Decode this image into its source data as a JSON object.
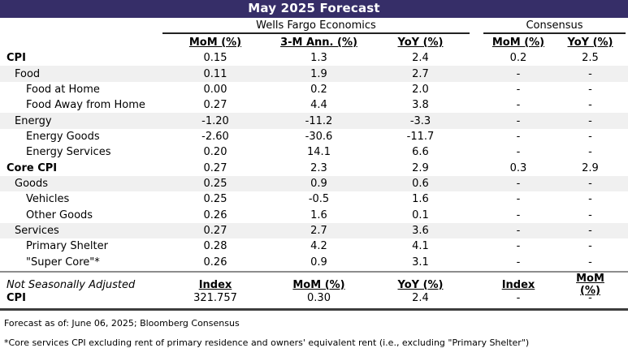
{
  "title": "May 2025 Forecast",
  "groups": {
    "wells_fargo": "Wells Fargo Economics",
    "consensus": "Consensus"
  },
  "columns": [
    "MoM (%)",
    "3-M Ann. (%)",
    "YoY (%)",
    "MoM (%)",
    "YoY (%)"
  ],
  "rows": [
    {
      "label": "CPI",
      "values": [
        "0.15",
        "1.3",
        "2.4",
        "0.2",
        "2.5"
      ]
    },
    {
      "label": "Food",
      "values": [
        "0.11",
        "1.9",
        "2.7",
        "-",
        "-"
      ]
    },
    {
      "label": "Food at Home",
      "values": [
        "0.00",
        "0.2",
        "2.0",
        "-",
        "-"
      ]
    },
    {
      "label": "Food Away from Home",
      "values": [
        "0.27",
        "4.4",
        "3.8",
        "-",
        "-"
      ]
    },
    {
      "label": "Energy",
      "values": [
        "-1.20",
        "-11.2",
        "-3.3",
        "-",
        "-"
      ]
    },
    {
      "label": "Energy Goods",
      "values": [
        "-2.60",
        "-30.6",
        "-11.7",
        "-",
        "-"
      ]
    },
    {
      "label": "Energy Services",
      "values": [
        "0.20",
        "14.1",
        "6.6",
        "-",
        "-"
      ]
    },
    {
      "label": "Core CPI",
      "values": [
        "0.27",
        "2.3",
        "2.9",
        "0.3",
        "2.9"
      ]
    },
    {
      "label": "Goods",
      "values": [
        "0.25",
        "0.9",
        "0.6",
        "-",
        "-"
      ]
    },
    {
      "label": "Vehicles",
      "values": [
        "0.25",
        "-0.5",
        "1.6",
        "-",
        "-"
      ]
    },
    {
      "label": "Other Goods",
      "values": [
        "0.26",
        "1.6",
        "0.1",
        "-",
        "-"
      ]
    },
    {
      "label": "Services",
      "values": [
        "0.27",
        "2.7",
        "3.6",
        "-",
        "-"
      ]
    },
    {
      "label": "Primary Shelter",
      "values": [
        "0.28",
        "4.2",
        "4.1",
        "-",
        "-"
      ]
    },
    {
      "label": "\"Super Core\"*",
      "values": [
        "0.26",
        "0.9",
        "3.1",
        "-",
        "-"
      ]
    }
  ],
  "nsa": {
    "label": "Not Seasonally Adjusted",
    "columns": [
      "Index",
      "MoM (%)",
      "YoY (%)",
      "Index",
      "MoM (%)"
    ],
    "row": {
      "label": "CPI",
      "values": [
        "321.757",
        "0.30",
        "2.4",
        "-",
        "-"
      ]
    }
  },
  "footnotes": [
    "Forecast as of: June 06, 2025; Bloomberg Consensus",
    "*Core services CPI excluding rent of primary residence and owners' equivalent rent (i.e., excluding \"Primary Shelter\")"
  ],
  "colors": {
    "title_bg": "#362e68",
    "title_text": "#ffffff",
    "stripe_bg": "#f0f0f0",
    "thick_rule": "#3d3d3d"
  }
}
